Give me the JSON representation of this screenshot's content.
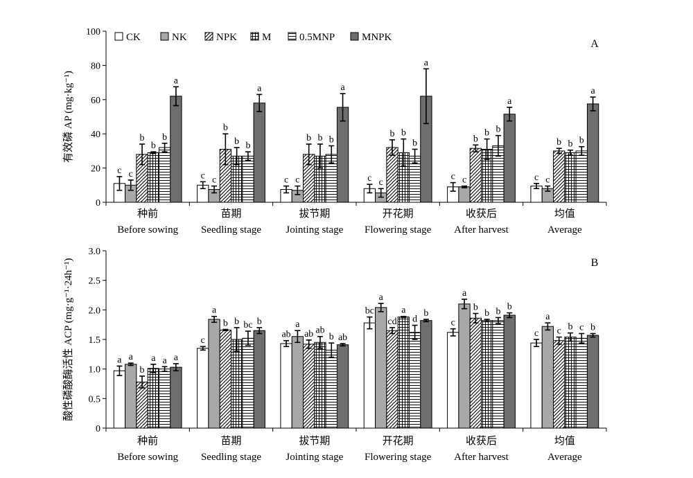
{
  "chart_data": [
    {
      "type": "bar",
      "panel_label": "A",
      "ylabel": "有效磷 AP (mg·kg⁻¹)",
      "ylim": [
        0,
        100
      ],
      "yticks": [
        0,
        20,
        40,
        60,
        80,
        100
      ],
      "categories": [
        {
          "cn": "种前",
          "en": "Before sowing"
        },
        {
          "cn": "苗期",
          "en": "Seedling stage"
        },
        {
          "cn": "拔节期",
          "en": "Jointing stage"
        },
        {
          "cn": "开花期",
          "en": "Flowering stage"
        },
        {
          "cn": "收获后",
          "en": "After harvest"
        },
        {
          "cn": "均值",
          "en": "Average"
        }
      ],
      "legend": {
        "placement": "top-left"
      },
      "series": [
        {
          "name": "CK",
          "pattern": "white",
          "values": [
            11,
            10,
            7.5,
            8,
            9,
            9.5
          ],
          "errors": [
            4,
            2,
            2,
            2.5,
            2.5,
            1.5
          ],
          "sig": [
            "c",
            "c",
            "c",
            "c",
            "c",
            "c"
          ]
        },
        {
          "name": "NK",
          "pattern": "lightgray",
          "values": [
            10,
            7.5,
            7,
            5.5,
            9,
            8
          ],
          "errors": [
            3,
            2,
            2.5,
            2.5,
            0.5,
            1.5
          ],
          "sig": [
            "c",
            "c",
            "c",
            "c",
            "c",
            "c"
          ]
        },
        {
          "name": "NPK",
          "pattern": "hatch",
          "values": [
            28,
            31,
            28,
            32,
            31.5,
            30
          ],
          "errors": [
            6,
            9,
            6,
            4.5,
            2,
            1.5
          ],
          "sig": [
            "b",
            "b",
            "b",
            "b",
            "b",
            "b"
          ]
        },
        {
          "name": "M",
          "pattern": "grid",
          "values": [
            29,
            27,
            27,
            29,
            31,
            29
          ],
          "errors": [
            0.5,
            5,
            7,
            8,
            6,
            1.5
          ],
          "sig": [
            "b",
            "b",
            "b",
            "b",
            "b",
            "b"
          ]
        },
        {
          "name": "0.5MNP",
          "pattern": "hlines",
          "values": [
            32,
            27,
            28,
            27,
            33,
            30
          ],
          "errors": [
            2.5,
            2.5,
            5,
            4,
            6,
            2.5
          ],
          "sig": [
            "b",
            "b",
            "b",
            "b",
            "b",
            "b"
          ]
        },
        {
          "name": "MNPK",
          "pattern": "darkgray",
          "values": [
            62,
            58,
            55.5,
            62,
            51.5,
            57.5
          ],
          "errors": [
            5.5,
            5,
            8,
            16,
            4,
            4
          ],
          "sig": [
            "a",
            "a",
            "a",
            "a",
            "a",
            "a"
          ]
        }
      ]
    },
    {
      "type": "bar",
      "panel_label": "B",
      "ylabel": "酸性磷酸酶活性 ACP (mg·g⁻¹·24h⁻¹)",
      "ylim": [
        0,
        3.0
      ],
      "yticks": [
        "0",
        "0.5",
        "1.0",
        "1.5",
        "2.0",
        "2.5",
        "3.0"
      ],
      "categories": [
        {
          "cn": "种前",
          "en": "Before sowing"
        },
        {
          "cn": "苗期",
          "en": "Seedling stage"
        },
        {
          "cn": "拔节期",
          "en": "Jointing stage"
        },
        {
          "cn": "开花期",
          "en": "Flowering stage"
        },
        {
          "cn": "收获后",
          "en": "After harvest"
        },
        {
          "cn": "均值",
          "en": "Average"
        }
      ],
      "series": [
        {
          "name": "CK",
          "pattern": "white",
          "values": [
            0.97,
            1.35,
            1.43,
            1.78,
            1.62,
            1.44
          ],
          "errors": [
            0.08,
            0.03,
            0.05,
            0.1,
            0.06,
            0.06
          ],
          "sig": [
            "a",
            "c",
            "ab",
            "bc",
            "c",
            "c"
          ]
        },
        {
          "name": "NK",
          "pattern": "lightgray",
          "values": [
            1.08,
            1.84,
            1.55,
            2.04,
            2.1,
            1.72
          ],
          "errors": [
            0.02,
            0.05,
            0.1,
            0.07,
            0.08,
            0.06
          ],
          "sig": [
            "a",
            "a",
            "a",
            "a",
            "a",
            "a"
          ]
        },
        {
          "name": "NPK",
          "pattern": "hatch",
          "values": [
            0.78,
            1.66,
            1.42,
            1.65,
            1.86,
            1.48
          ],
          "errors": [
            0.1,
            0.01,
            0.07,
            0.05,
            0.08,
            0.06
          ],
          "sig": [
            "b",
            "b",
            "ab",
            "cd",
            "b",
            "c"
          ]
        },
        {
          "name": "M",
          "pattern": "grid",
          "values": [
            1.01,
            1.5,
            1.45,
            1.88,
            1.82,
            1.54
          ],
          "errors": [
            0.07,
            0.2,
            0.1,
            0.01,
            0.02,
            0.07
          ],
          "sig": [
            "a",
            "b",
            "ab",
            "a",
            "b",
            "b"
          ]
        },
        {
          "name": "0.5MNP",
          "pattern": "hlines",
          "values": [
            1.0,
            1.52,
            1.32,
            1.62,
            1.82,
            1.52
          ],
          "errors": [
            0.04,
            0.12,
            0.12,
            0.12,
            0.05,
            0.08
          ],
          "sig": [
            "a",
            "bc",
            "b",
            "d",
            "b",
            "c"
          ]
        },
        {
          "name": "MNPK",
          "pattern": "darkgray",
          "values": [
            1.03,
            1.65,
            1.41,
            1.82,
            1.91,
            1.57
          ],
          "errors": [
            0.06,
            0.05,
            0.02,
            0.02,
            0.04,
            0.03
          ],
          "sig": [
            "a",
            "b",
            "ab",
            "b",
            "b",
            "b"
          ]
        }
      ]
    }
  ]
}
